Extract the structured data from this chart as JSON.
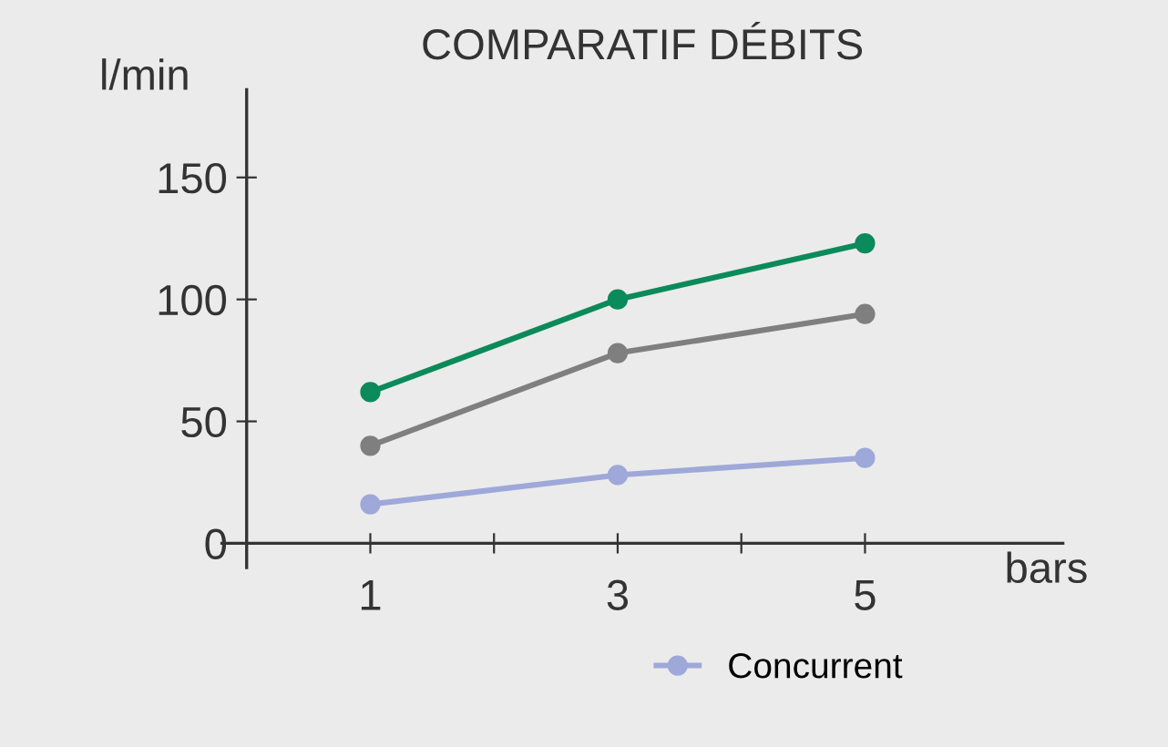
{
  "chart_data": {
    "type": "line",
    "title": "COMPARATIF DÉBITS",
    "xlabel": "bars",
    "ylabel": "l/min",
    "x": [
      1,
      3,
      5
    ],
    "series": [
      {
        "name": "Concurrent",
        "color": "#9ea8d9",
        "values": [
          16,
          28,
          35
        ]
      },
      {
        "color": "#7f7f7f",
        "values": [
          40,
          78,
          94
        ]
      },
      {
        "color": "#0b8a5b",
        "values": [
          62,
          100,
          123
        ]
      }
    ],
    "xlim": [
      -0.2,
      6.6
    ],
    "xticks": [
      {
        "value": 0,
        "label": null
      },
      1,
      {
        "value": 2,
        "label": null
      },
      3,
      {
        "value": 4,
        "label": null
      },
      5
    ],
    "ylim": [
      -10,
      186
    ],
    "yticks": [
      0,
      50,
      100,
      150
    ],
    "marker": "circle",
    "line_style": "solid",
    "grid": false,
    "legend": "bottom right"
  }
}
